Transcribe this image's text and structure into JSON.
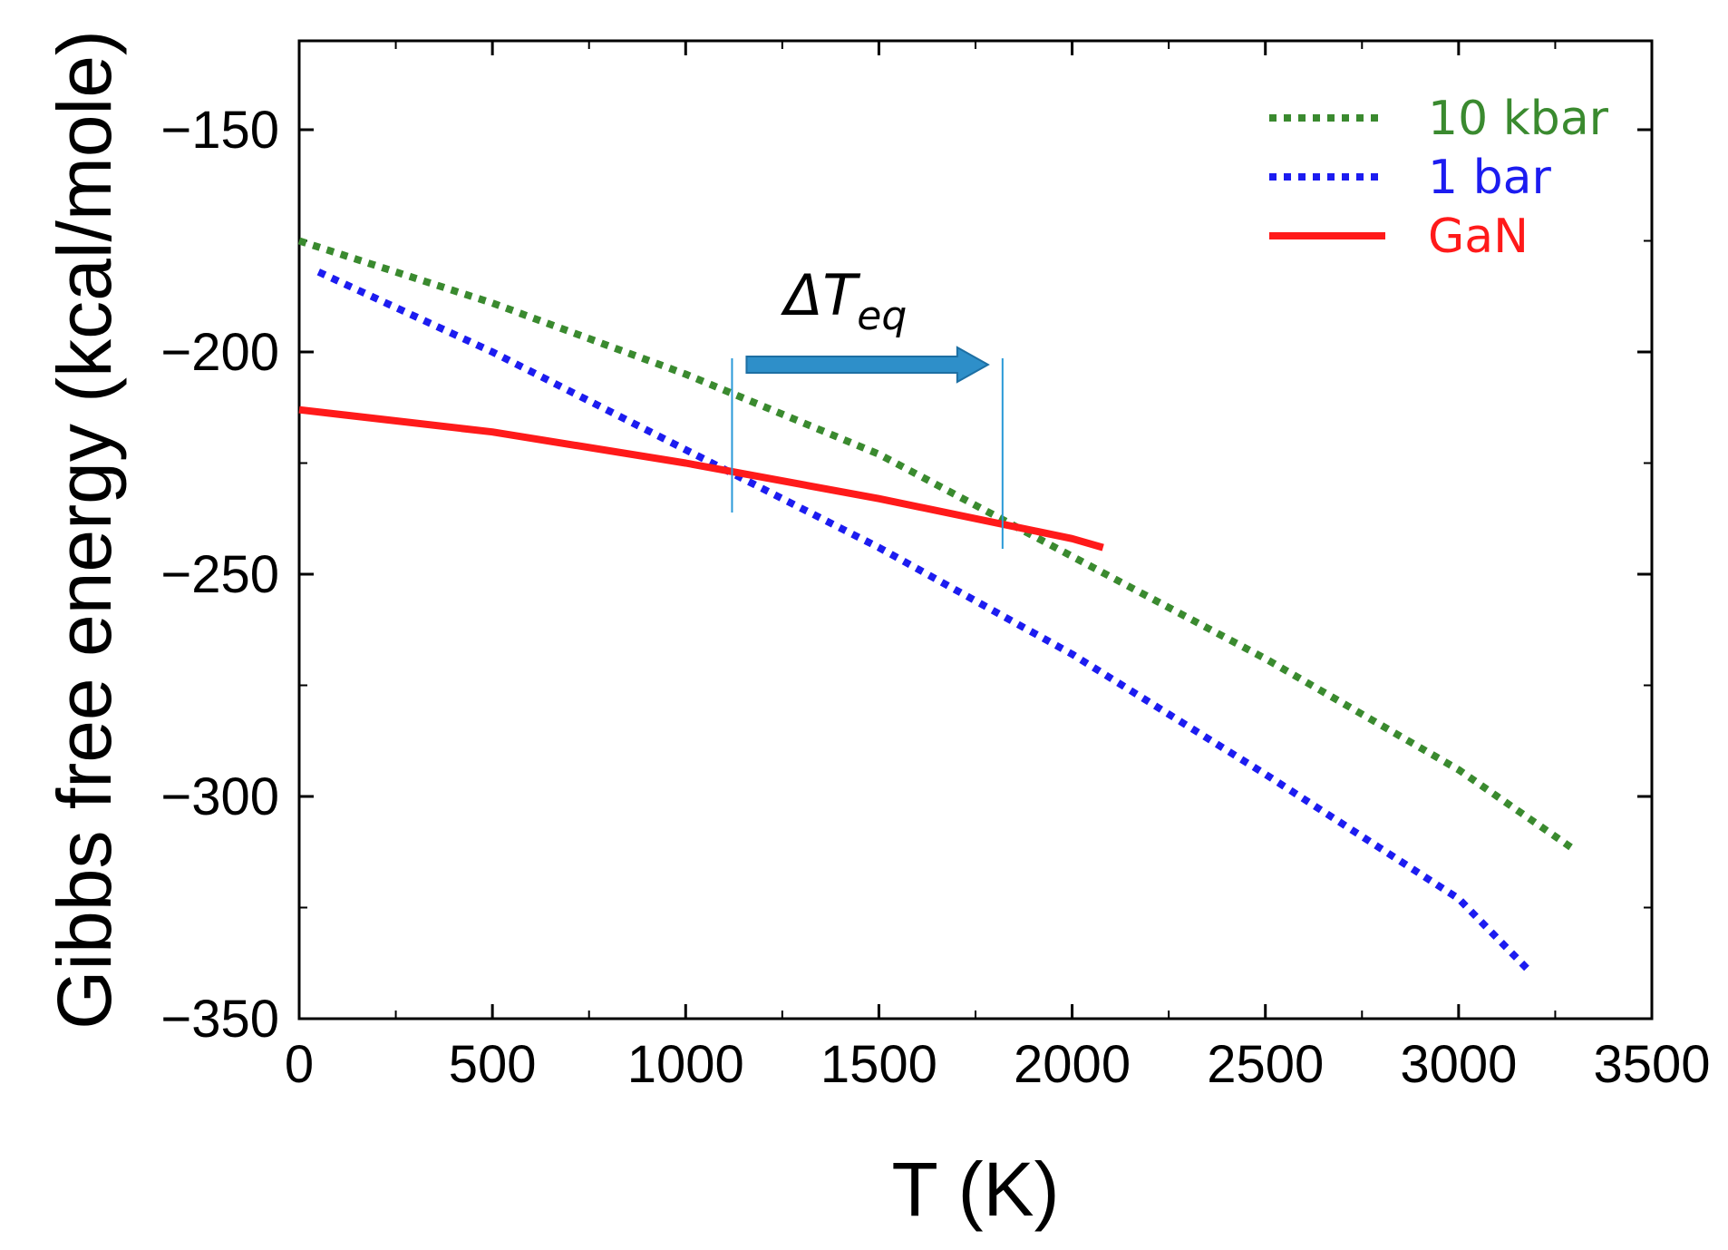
{
  "chart_data": {
    "type": "line",
    "xlabel": "T (K)",
    "ylabel": "Gibbs free energy  (kcal/mole)",
    "xlim": [
      0,
      3500
    ],
    "ylim": [
      -350,
      -130
    ],
    "xticks": [
      0,
      500,
      1000,
      1500,
      2000,
      2500,
      3000,
      3500
    ],
    "yticks": [
      -150,
      -200,
      -250,
      -300,
      -350
    ],
    "xtick_labels": [
      "0",
      "500",
      "1000",
      "1500",
      "2000",
      "2500",
      "3000",
      "3500"
    ],
    "ytick_labels": [
      "−150",
      "−200",
      "−250",
      "−300",
      "−350"
    ],
    "legend_position": "top-right",
    "series": [
      {
        "name": "10 kbar",
        "color": "#3a8a2f",
        "style": "dotted",
        "x": [
          0,
          500,
          1000,
          1500,
          2000,
          2500,
          3000,
          3300
        ],
        "y": [
          -175,
          -189,
          -205,
          -223,
          -246,
          -269,
          -294,
          -312
        ]
      },
      {
        "name": "1   bar",
        "color": "#1c1cf0",
        "style": "dotted",
        "x": [
          50,
          500,
          1000,
          1500,
          2000,
          2500,
          3000,
          3180
        ],
        "y": [
          -182,
          -200,
          -222,
          -244,
          -268,
          -295,
          -323,
          -339
        ]
      },
      {
        "name": "GaN",
        "color": "#ff1a1a",
        "style": "solid",
        "x": [
          0,
          500,
          1000,
          1500,
          2000,
          2080
        ],
        "y": [
          -213,
          -218,
          -225,
          -233,
          -242,
          -244
        ]
      }
    ],
    "annotations": {
      "label": "ΔT",
      "label_sub": "eq",
      "t_low": 1120,
      "t_high": 1820,
      "arrow_color": "#2e8fc9",
      "line_color": "#2a9ad8"
    }
  }
}
